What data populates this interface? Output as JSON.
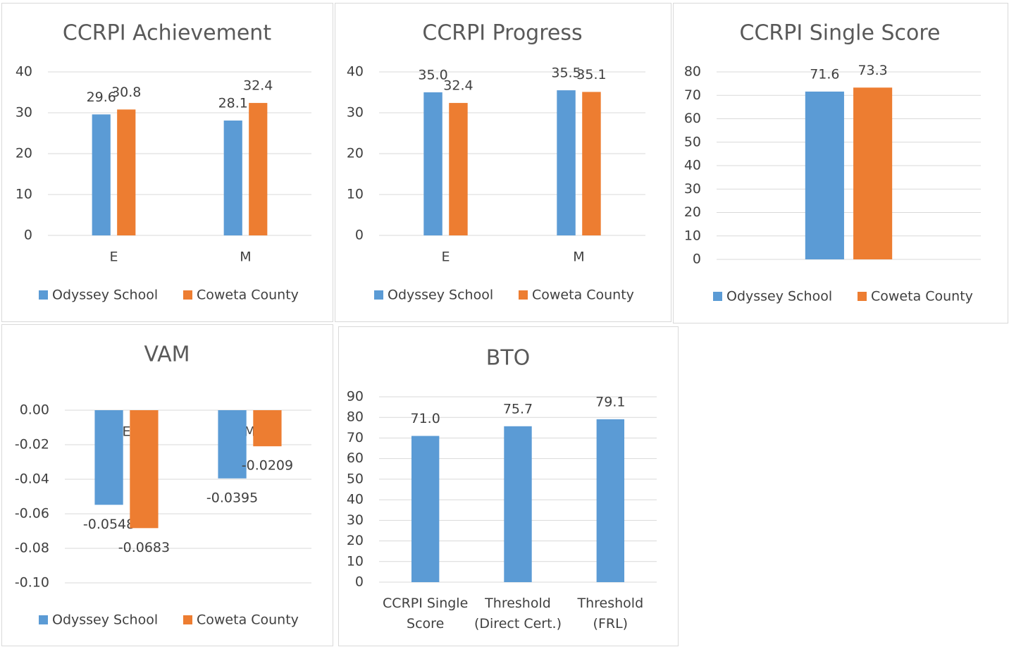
{
  "chart_data": [
    {
      "type": "bar",
      "title": "CCRPI Achievement",
      "categories": [
        "E",
        "M"
      ],
      "series": [
        {
          "name": "Odyssey School",
          "color": "#5b9bd5",
          "values": [
            29.6,
            28.1
          ]
        },
        {
          "name": "Coweta County",
          "color": "#ed7d31",
          "values": [
            30.8,
            32.4
          ]
        }
      ],
      "ylim": [
        0,
        40
      ],
      "yticks": [
        0,
        10,
        20,
        30,
        40
      ],
      "grid": true,
      "legend": "bottom"
    },
    {
      "type": "bar",
      "title": "CCRPI Progress",
      "categories": [
        "E",
        "M"
      ],
      "series": [
        {
          "name": "Odyssey School",
          "color": "#5b9bd5",
          "values": [
            35.0,
            35.5
          ],
          "value_labels": [
            "35.0",
            "35.5"
          ]
        },
        {
          "name": "Coweta County",
          "color": "#ed7d31",
          "values": [
            32.4,
            35.1
          ]
        }
      ],
      "ylim": [
        0,
        40
      ],
      "yticks": [
        0,
        10,
        20,
        30,
        40
      ],
      "grid": true,
      "legend": "bottom"
    },
    {
      "type": "bar",
      "title": "CCRPI Single Score",
      "categories": [
        null
      ],
      "series": [
        {
          "name": "Odyssey School",
          "color": "#5b9bd5",
          "values": [
            71.6
          ]
        },
        {
          "name": "Coweta County",
          "color": "#ed7d31",
          "values": [
            73.3
          ]
        }
      ],
      "ylim": [
        0,
        80
      ],
      "yticks": [
        0,
        10,
        20,
        30,
        40,
        50,
        60,
        70,
        80
      ],
      "grid": true,
      "legend": "bottom"
    },
    {
      "type": "bar",
      "title": "VAM",
      "categories": [
        "E",
        "M"
      ],
      "series": [
        {
          "name": "Odyssey School",
          "color": "#5b9bd5",
          "values": [
            -0.0548,
            -0.0395
          ]
        },
        {
          "name": "Coweta County",
          "color": "#ed7d31",
          "values": [
            -0.0683,
            -0.0209
          ]
        }
      ],
      "ylim": [
        -0.1,
        0
      ],
      "yticks": [
        {
          "value": 0,
          "label": "0.00"
        },
        {
          "value": -0.02,
          "label": "-0.02"
        },
        {
          "value": -0.04,
          "label": "-0.04"
        },
        {
          "value": -0.06,
          "label": "-0.06"
        },
        {
          "value": -0.08,
          "label": "-0.08"
        },
        {
          "value": -0.1,
          "label": "-0.10"
        }
      ],
      "grid": true,
      "legend": "bottom"
    },
    {
      "type": "bar",
      "title": "BTO",
      "categories": [
        "CCRPI Single Score",
        "Threshold (Direct Cert.)",
        "Threshold (FRL)"
      ],
      "values": [
        71.0,
        75.7,
        79.1
      ],
      "value_labels": [
        "71.0",
        "75.7",
        "79.1"
      ],
      "color": "#5b9bd5",
      "ylim": [
        0,
        90
      ],
      "yticks": [
        0,
        10,
        20,
        30,
        40,
        50,
        60,
        70,
        80,
        90
      ],
      "grid": true
    }
  ]
}
